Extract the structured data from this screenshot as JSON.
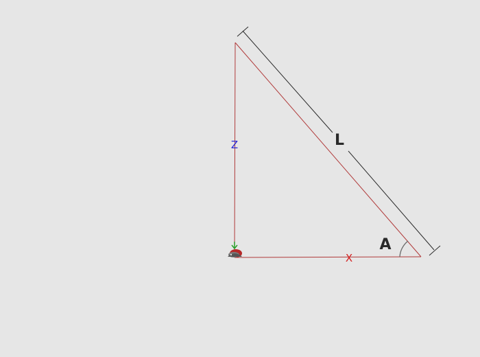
{
  "labels": {
    "z_axis": "Z",
    "x_axis": "X",
    "length": "L",
    "angle": "A"
  },
  "colors": {
    "background": "#e6e6e6",
    "triangle": "#b03a3a",
    "dimension": "#2a2a2a",
    "z_label": "#2b2bd6",
    "x_label": "#d42020",
    "angle_arc": "#6a6a6a",
    "origin_arrow": "#2aa02a"
  },
  "icons": {
    "origin": "origin-marker-icon"
  }
}
